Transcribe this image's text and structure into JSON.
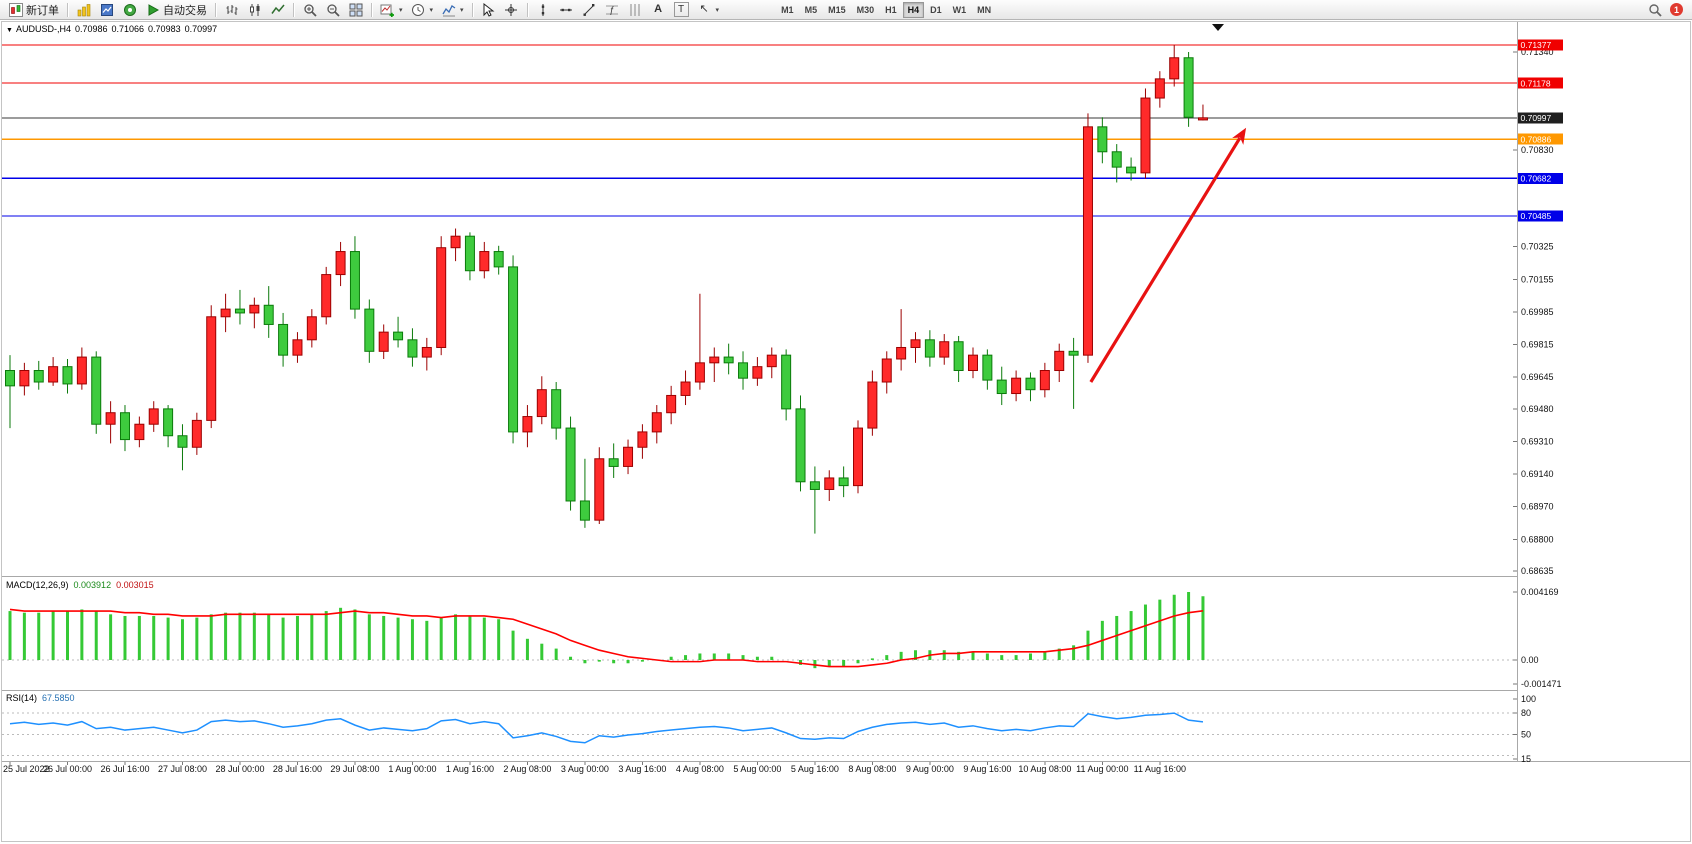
{
  "toolbar": {
    "new_order_label": "新订单",
    "auto_trading_label": "自动交易",
    "timeframes": [
      "M1",
      "M5",
      "M15",
      "M30",
      "H1",
      "H4",
      "D1",
      "W1",
      "MN"
    ],
    "active_timeframe": "H4",
    "notification_count": "1"
  },
  "chart_info": {
    "symbol_period": "AUDUSD-,H4",
    "open": "0.70986",
    "high": "0.71066",
    "low": "0.70983",
    "close": "0.70997"
  },
  "macd_info": {
    "name": "MACD(12,26,9)",
    "main_value": "0.003912",
    "signal_value": "0.003015"
  },
  "rsi_info": {
    "name": "RSI(14)",
    "value": "67.5850"
  },
  "chart_data": [
    {
      "type": "candlestick",
      "title": "AUDUSD- H4",
      "up_color": "#ff2a2a",
      "up_border": "#9c0000",
      "down_color": "#3ecb3e",
      "down_border": "#0b7a0b",
      "ylim": [
        0.68593,
        0.71442
      ],
      "x_label_step": 4,
      "x_labels": [
        "25 Jul 2022",
        "26 Jul 00:00",
        "26 Jul 16:00",
        "27 Jul 08:00",
        "28 Jul 00:00",
        "28 Jul 16:00",
        "29 Jul 08:00",
        "1 Aug 00:00",
        "1 Aug 16:00",
        "2 Aug 08:00",
        "3 Aug 00:00",
        "3 Aug 16:00",
        "4 Aug 08:00",
        "5 Aug 00:00",
        "5 Aug 16:00",
        "8 Aug 08:00",
        "9 Aug 00:00",
        "9 Aug 16:00",
        "10 Aug 08:00",
        "11 Aug 00:00",
        "11 Aug 16:00"
      ],
      "y_ticks": [
        {
          "label": "0.71340",
          "value": 0.7134
        },
        {
          "label": "0.70830",
          "value": 0.7083
        },
        {
          "label": "0.70325",
          "value": 0.70325
        },
        {
          "label": "0.70155",
          "value": 0.70155
        },
        {
          "label": "0.69985",
          "value": 0.69985
        },
        {
          "label": "0.69815",
          "value": 0.69815
        },
        {
          "label": "0.69645",
          "value": 0.69645
        },
        {
          "label": "0.69480",
          "value": 0.6948
        },
        {
          "label": "0.69310",
          "value": 0.6931
        },
        {
          "label": "0.69140",
          "value": 0.6914
        },
        {
          "label": "0.68970",
          "value": 0.6897
        },
        {
          "label": "0.68800",
          "value": 0.688
        },
        {
          "label": "0.68635",
          "value": 0.68635
        }
      ],
      "hlines": [
        {
          "price": 0.71377,
          "label": "0.71377",
          "color": "#f00000",
          "tag": "#f00000",
          "width": 1.2
        },
        {
          "price": 0.71178,
          "label": "0.71178",
          "color": "#f00000",
          "tag": "#f00000",
          "width": 1.2
        },
        {
          "price": 0.70997,
          "label": "0.70997",
          "color": "#3a3a3a",
          "tag": "#1f1f1f",
          "width": 1
        },
        {
          "price": 0.70886,
          "label": "0.70886",
          "color": "#ff9800",
          "tag": "#ff9800",
          "width": 1.4
        },
        {
          "price": 0.70682,
          "label": "0.70682",
          "color": "#0000e8",
          "tag": "#0000e8",
          "width": 1.4
        },
        {
          "price": 0.70485,
          "label": "0.70485",
          "color": "#0000e8",
          "tag": "#0000e8",
          "width": 1.4
        }
      ],
      "annotations": [
        {
          "type": "arrow",
          "x1_candle": 75.2,
          "y1_price": 0.6962,
          "x2_candle": 86.0,
          "y2_price": 0.70945,
          "color": "#e81212",
          "width": 3.2
        }
      ],
      "candles": [
        [
          0.6968,
          0.6976,
          0.6938,
          0.696
        ],
        [
          0.696,
          0.6972,
          0.6955,
          0.6968
        ],
        [
          0.6968,
          0.6973,
          0.6958,
          0.6962
        ],
        [
          0.6962,
          0.6975,
          0.696,
          0.697
        ],
        [
          0.697,
          0.6974,
          0.6956,
          0.6961
        ],
        [
          0.6961,
          0.698,
          0.6958,
          0.6975
        ],
        [
          0.6975,
          0.6978,
          0.6935,
          0.694
        ],
        [
          0.694,
          0.6952,
          0.693,
          0.6946
        ],
        [
          0.6946,
          0.695,
          0.6926,
          0.6932
        ],
        [
          0.6932,
          0.6944,
          0.6928,
          0.694
        ],
        [
          0.694,
          0.6952,
          0.6936,
          0.6948
        ],
        [
          0.6948,
          0.695,
          0.6928,
          0.6934
        ],
        [
          0.6934,
          0.694,
          0.6916,
          0.6928
        ],
        [
          0.6928,
          0.6946,
          0.6924,
          0.6942
        ],
        [
          0.6942,
          0.7002,
          0.6938,
          0.6996
        ],
        [
          0.6996,
          0.7008,
          0.6988,
          0.7
        ],
        [
          0.7,
          0.701,
          0.6992,
          0.6998
        ],
        [
          0.6998,
          0.7006,
          0.699,
          0.7002
        ],
        [
          0.7002,
          0.7012,
          0.6985,
          0.6992
        ],
        [
          0.6992,
          0.6998,
          0.697,
          0.6976
        ],
        [
          0.6976,
          0.6988,
          0.6972,
          0.6984
        ],
        [
          0.6984,
          0.7,
          0.698,
          0.6996
        ],
        [
          0.6996,
          0.7022,
          0.6992,
          0.7018
        ],
        [
          0.7018,
          0.7035,
          0.7012,
          0.703
        ],
        [
          0.703,
          0.7038,
          0.6995,
          0.7
        ],
        [
          0.7,
          0.7005,
          0.6972,
          0.6978
        ],
        [
          0.6978,
          0.6992,
          0.6974,
          0.6988
        ],
        [
          0.6988,
          0.6996,
          0.698,
          0.6984
        ],
        [
          0.6984,
          0.699,
          0.697,
          0.6975
        ],
        [
          0.6975,
          0.6985,
          0.6968,
          0.698
        ],
        [
          0.698,
          0.7038,
          0.6976,
          0.7032
        ],
        [
          0.7032,
          0.7042,
          0.7025,
          0.7038
        ],
        [
          0.7038,
          0.704,
          0.7015,
          0.702
        ],
        [
          0.702,
          0.7035,
          0.7016,
          0.703
        ],
        [
          0.703,
          0.7033,
          0.7018,
          0.7022
        ],
        [
          0.7022,
          0.7028,
          0.693,
          0.6936
        ],
        [
          0.6936,
          0.695,
          0.6928,
          0.6944
        ],
        [
          0.6944,
          0.6965,
          0.694,
          0.6958
        ],
        [
          0.6958,
          0.6962,
          0.6932,
          0.6938
        ],
        [
          0.6938,
          0.6944,
          0.6895,
          0.69
        ],
        [
          0.69,
          0.6922,
          0.6886,
          0.689
        ],
        [
          0.689,
          0.6928,
          0.6888,
          0.6922
        ],
        [
          0.6922,
          0.693,
          0.6912,
          0.6918
        ],
        [
          0.6918,
          0.6932,
          0.6914,
          0.6928
        ],
        [
          0.6928,
          0.694,
          0.6922,
          0.6936
        ],
        [
          0.6936,
          0.695,
          0.693,
          0.6946
        ],
        [
          0.6946,
          0.696,
          0.694,
          0.6955
        ],
        [
          0.6955,
          0.6968,
          0.695,
          0.6962
        ],
        [
          0.6962,
          0.7008,
          0.6958,
          0.6972
        ],
        [
          0.6972,
          0.698,
          0.6962,
          0.6975
        ],
        [
          0.6975,
          0.6982,
          0.6966,
          0.6972
        ],
        [
          0.6972,
          0.6978,
          0.6958,
          0.6964
        ],
        [
          0.6964,
          0.6975,
          0.696,
          0.697
        ],
        [
          0.697,
          0.698,
          0.6964,
          0.6976
        ],
        [
          0.6976,
          0.6979,
          0.6942,
          0.6948
        ],
        [
          0.6948,
          0.6955,
          0.6905,
          0.691
        ],
        [
          0.691,
          0.6918,
          0.6883,
          0.6906
        ],
        [
          0.6906,
          0.6916,
          0.69,
          0.6912
        ],
        [
          0.6912,
          0.6918,
          0.6902,
          0.6908
        ],
        [
          0.6908,
          0.6942,
          0.6904,
          0.6938
        ],
        [
          0.6938,
          0.6968,
          0.6934,
          0.6962
        ],
        [
          0.6962,
          0.6978,
          0.6956,
          0.6974
        ],
        [
          0.6974,
          0.7,
          0.6968,
          0.698
        ],
        [
          0.698,
          0.6988,
          0.6972,
          0.6984
        ],
        [
          0.6984,
          0.6989,
          0.697,
          0.6975
        ],
        [
          0.6975,
          0.6987,
          0.6971,
          0.6983
        ],
        [
          0.6983,
          0.6986,
          0.6962,
          0.6968
        ],
        [
          0.6968,
          0.698,
          0.6964,
          0.6976
        ],
        [
          0.6976,
          0.6979,
          0.6958,
          0.6963
        ],
        [
          0.6963,
          0.697,
          0.695,
          0.6956
        ],
        [
          0.6956,
          0.6968,
          0.6952,
          0.6964
        ],
        [
          0.6964,
          0.6967,
          0.6952,
          0.6958
        ],
        [
          0.6958,
          0.6972,
          0.6954,
          0.6968
        ],
        [
          0.6968,
          0.6982,
          0.6962,
          0.6978
        ],
        [
          0.6978,
          0.6985,
          0.6948,
          0.6976
        ],
        [
          0.6976,
          0.7102,
          0.6972,
          0.7095
        ],
        [
          0.7095,
          0.71,
          0.7076,
          0.7082
        ],
        [
          0.7082,
          0.7086,
          0.7066,
          0.7074
        ],
        [
          0.7074,
          0.7079,
          0.7067,
          0.7071
        ],
        [
          0.7071,
          0.7115,
          0.7068,
          0.711
        ],
        [
          0.711,
          0.7124,
          0.7105,
          0.712
        ],
        [
          0.712,
          0.71377,
          0.7116,
          0.7131
        ],
        [
          0.7131,
          0.7134,
          0.7095,
          0.71
        ],
        [
          0.70986,
          0.71066,
          0.70983,
          0.70997
        ]
      ]
    },
    {
      "type": "bar+line",
      "title": "MACD(12,26,9)",
      "hist_color": "#35c935",
      "signal_color": "#ff0000",
      "ylim": [
        -0.001471,
        0.004169
      ],
      "y_ticks": [
        {
          "label": "0.004169",
          "value": 0.004169
        },
        {
          "label": "0.00",
          "value": 0.0
        },
        {
          "label": "-0.001471",
          "value": -0.001471
        }
      ],
      "histogram": [
        0.003,
        0.0029,
        0.0029,
        0.003,
        0.003,
        0.0031,
        0.003,
        0.0028,
        0.0027,
        0.0027,
        0.0027,
        0.0026,
        0.0025,
        0.0026,
        0.0028,
        0.0029,
        0.0029,
        0.0029,
        0.0028,
        0.0026,
        0.0027,
        0.0028,
        0.003,
        0.0032,
        0.0031,
        0.0028,
        0.0027,
        0.0026,
        0.0025,
        0.0024,
        0.0026,
        0.0028,
        0.0027,
        0.0026,
        0.0025,
        0.0018,
        0.0013,
        0.001,
        0.0007,
        0.0002,
        -0.0002,
        -0.0001,
        -0.0002,
        -0.0002,
        -0.0001,
        0.0,
        0.0002,
        0.0003,
        0.0004,
        0.0004,
        0.0004,
        0.0003,
        0.0002,
        0.0002,
        0.0,
        -0.0003,
        -0.0005,
        -0.0004,
        -0.0004,
        -0.0002,
        0.0001,
        0.0003,
        0.0005,
        0.0006,
        0.0006,
        0.0006,
        0.0005,
        0.0005,
        0.0004,
        0.0003,
        0.0003,
        0.0004,
        0.0005,
        0.0007,
        0.0009,
        0.0018,
        0.0024,
        0.0027,
        0.003,
        0.0034,
        0.0037,
        0.004,
        0.004169,
        0.003912
      ],
      "signal": [
        0.0031,
        0.003,
        0.003,
        0.003,
        0.003,
        0.003,
        0.003,
        0.003,
        0.0029,
        0.0029,
        0.0028,
        0.0028,
        0.0027,
        0.0027,
        0.0027,
        0.0028,
        0.0028,
        0.0028,
        0.0028,
        0.0028,
        0.0028,
        0.0028,
        0.0028,
        0.0029,
        0.003,
        0.0029,
        0.0029,
        0.0028,
        0.0027,
        0.0027,
        0.0026,
        0.0027,
        0.0027,
        0.0027,
        0.0026,
        0.0025,
        0.0022,
        0.0019,
        0.0016,
        0.0012,
        0.0009,
        0.0006,
        0.0004,
        0.0002,
        0.0001,
        0.0,
        -0.0001,
        -0.0001,
        -0.0001,
        0.0,
        0.0,
        0.0,
        -0.0001,
        -0.0001,
        -0.0001,
        -0.0002,
        -0.0003,
        -0.0004,
        -0.0004,
        -0.0004,
        -0.0003,
        -0.0002,
        0.0,
        0.0001,
        0.0003,
        0.0004,
        0.0004,
        0.0005,
        0.0005,
        0.0005,
        0.0005,
        0.0005,
        0.0005,
        0.0006,
        0.0007,
        0.0009,
        0.0012,
        0.0015,
        0.0018,
        0.0021,
        0.0024,
        0.0027,
        0.0029,
        0.003015
      ]
    },
    {
      "type": "line",
      "title": "RSI(14)",
      "color": "#1e90ff",
      "levels": [
        80,
        50,
        20
      ],
      "ylim": [
        15,
        100
      ],
      "y_ticks": [
        {
          "label": "100",
          "value": 100
        },
        {
          "label": "80",
          "value": 80
        },
        {
          "label": "50",
          "value": 50
        },
        {
          "label": "15",
          "value": 15
        }
      ],
      "values": [
        65,
        67,
        64,
        66,
        63,
        68,
        58,
        60,
        56,
        58,
        60,
        56,
        52,
        56,
        68,
        70,
        68,
        69,
        65,
        60,
        62,
        65,
        70,
        72,
        63,
        56,
        59,
        57,
        55,
        58,
        69,
        71,
        65,
        68,
        65,
        45,
        48,
        52,
        47,
        40,
        38,
        48,
        46,
        49,
        51,
        54,
        56,
        58,
        60,
        61,
        59,
        55,
        57,
        59,
        52,
        44,
        43,
        45,
        44,
        54,
        60,
        64,
        66,
        67,
        64,
        66,
        60,
        62,
        58,
        55,
        57,
        55,
        59,
        62,
        61,
        79,
        75,
        72,
        74,
        77,
        78,
        80,
        70,
        67.585
      ]
    }
  ]
}
